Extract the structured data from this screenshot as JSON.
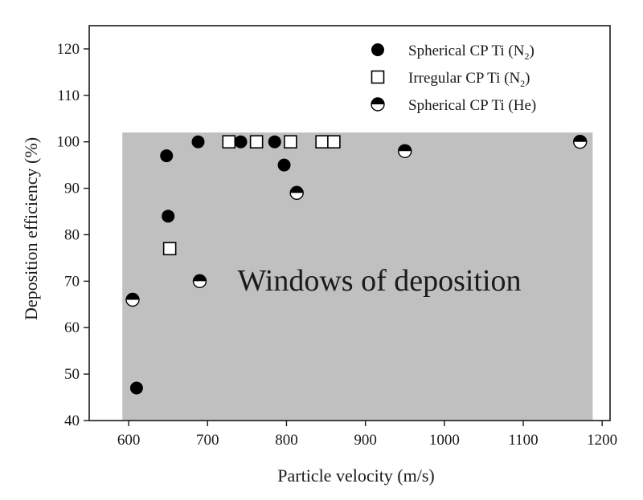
{
  "chart_data": {
    "type": "scatter",
    "xlabel": "Particle velocity (m/s)",
    "ylabel": "Deposition efficiency (%)",
    "xlim": [
      550,
      1210
    ],
    "ylim": [
      40,
      125
    ],
    "xticks": [
      600,
      700,
      800,
      900,
      1000,
      1100,
      1200
    ],
    "yticks": [
      40,
      50,
      60,
      70,
      80,
      90,
      100,
      110,
      120
    ],
    "grid": false,
    "legend_position": "top-right",
    "window_region": {
      "x_range": [
        592,
        1188
      ],
      "y_range": [
        40,
        102
      ],
      "color": "#c0c0c0"
    },
    "annotation": "Windows of deposition",
    "series": [
      {
        "name": "Spherical CP Ti (N",
        "name_sub": "2",
        "name_end": ")",
        "marker": "filled-circle",
        "points": [
          {
            "x": 610,
            "y": 47
          },
          {
            "x": 648,
            "y": 97
          },
          {
            "x": 650,
            "y": 84
          },
          {
            "x": 688,
            "y": 100
          },
          {
            "x": 742,
            "y": 100
          },
          {
            "x": 785,
            "y": 100
          },
          {
            "x": 797,
            "y": 95
          }
        ]
      },
      {
        "name": "Irregular CP Ti (N",
        "name_sub": "2",
        "name_end": ")",
        "marker": "open-square",
        "points": [
          {
            "x": 652,
            "y": 77
          },
          {
            "x": 727,
            "y": 100
          },
          {
            "x": 762,
            "y": 100
          },
          {
            "x": 805,
            "y": 100
          },
          {
            "x": 845,
            "y": 100
          },
          {
            "x": 860,
            "y": 100
          }
        ]
      },
      {
        "name": "Spherical CP Ti (He)",
        "marker": "half-filled-circle",
        "points": [
          {
            "x": 605,
            "y": 66
          },
          {
            "x": 690,
            "y": 70
          },
          {
            "x": 813,
            "y": 89
          },
          {
            "x": 950,
            "y": 98
          },
          {
            "x": 1172,
            "y": 100
          }
        ]
      }
    ]
  }
}
